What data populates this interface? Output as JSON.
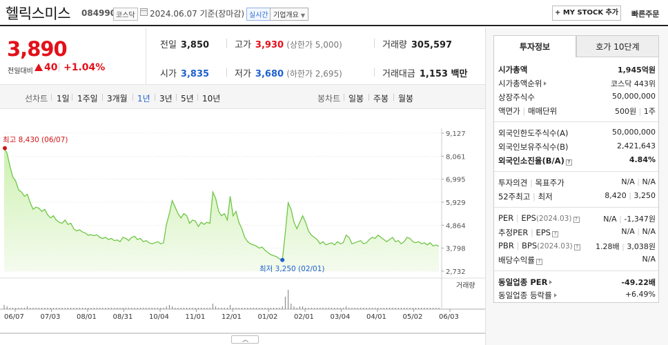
{
  "header": {
    "stock_name": "헬릭스미스",
    "stock_code": "084990",
    "market": "코스닥",
    "date": "2024.06.07 기준(장마감)",
    "realtime": "실시간",
    "company_info": "기업개요",
    "mystock": "+ MY STOCK 추가",
    "quick_order": "빠른주문"
  },
  "price": {
    "current": "3,890",
    "change_label": "전일대비",
    "change_value": "40",
    "change_pct": "+1.04%"
  },
  "stats": {
    "prev_label": "전일",
    "prev": "3,850",
    "high_label": "고가",
    "high": "3,930",
    "upper_limit": "(상한가 5,000)",
    "volume_label": "거래량",
    "volume": "305,597",
    "open_label": "시가",
    "open": "3,835",
    "low_label": "저가",
    "low": "3,680",
    "lower_limit": "(하한가 2,695)",
    "amount_label": "거래대금",
    "amount": "1,153 백만"
  },
  "tabs": {
    "line_title": "선차트",
    "line_tabs": [
      "1일",
      "1주일",
      "3개월",
      "1년",
      "3년",
      "5년",
      "10년"
    ],
    "active": "1년",
    "candle_title": "봉차트",
    "candle_tabs": [
      "일봉",
      "주봉",
      "월봉"
    ]
  },
  "chart_data": {
    "type": "area",
    "y_ticks": [
      "9,127",
      "8,061",
      "6,995",
      "5,929",
      "4,864",
      "3,798",
      "2,732"
    ],
    "ylim": [
      2732,
      9127
    ],
    "x_labels": [
      "06/07",
      "07/03",
      "08/01",
      "08/31",
      "10/04",
      "11/01",
      "12/01",
      "01/02",
      "02/01",
      "03/04",
      "04/01",
      "05/02",
      "06/03"
    ],
    "max_label": "최고 8,430 (06/07)",
    "min_label": "최저 3,250 (02/01)",
    "volume_label": "거래량",
    "price_series": [
      8430,
      8200,
      7600,
      7100,
      6900,
      6500,
      6400,
      6200,
      6300,
      5900,
      5600,
      5700,
      5650,
      5500,
      5600,
      5350,
      5200,
      5300,
      5100,
      5000,
      4950,
      5100,
      4900,
      4950,
      4700,
      4600,
      4650,
      4550,
      4500,
      4400,
      4420,
      4380,
      4420,
      4300,
      4250,
      4300,
      4200,
      4250,
      4150,
      4180,
      4100,
      4300,
      4250,
      4150,
      4300,
      4350,
      4200,
      4250,
      4100,
      4150,
      4050,
      4000,
      4050,
      4100,
      4000,
      4050,
      4900,
      5400,
      6000,
      5700,
      5400,
      5200,
      5400,
      5300,
      4950,
      5100,
      5050,
      4800,
      5000,
      4900,
      5000,
      4950,
      6400,
      6100,
      5500,
      5300,
      5400,
      5100,
      6200,
      5300,
      5500,
      5000,
      4700,
      4300,
      4100,
      4000,
      3950,
      3900,
      3800,
      3850,
      3700,
      3600,
      3500,
      3450,
      3400,
      3300,
      3250,
      4500,
      5900,
      5600,
      5000,
      4700,
      5000,
      5300,
      5000,
      4600,
      4400,
      4300,
      4200,
      4000,
      4100,
      3950,
      4000,
      4050,
      3950,
      4100,
      4000,
      4050,
      4400,
      4300,
      4000,
      4050,
      4100,
      4150,
      4000,
      4050,
      4200,
      4300,
      4250,
      4400,
      4300,
      4200,
      4100,
      4200,
      4300,
      4100,
      4150,
      4000,
      4100,
      4300,
      4250,
      4100,
      4050,
      4100,
      4000,
      4050,
      3950,
      4050,
      3900,
      3950,
      3890
    ],
    "volume_series": [
      3,
      2,
      1,
      1,
      1,
      1,
      1,
      1,
      2,
      1,
      1,
      1,
      1,
      1,
      1,
      1,
      1,
      1,
      1,
      1,
      1,
      1,
      1,
      1,
      1,
      1,
      1,
      1,
      1,
      1,
      1,
      1,
      1,
      1,
      1,
      1,
      1,
      1,
      1,
      1,
      1,
      1,
      1,
      1,
      1,
      1,
      1,
      1,
      1,
      1,
      1,
      1,
      1,
      1,
      1,
      1,
      2,
      3,
      2,
      1,
      1,
      1,
      1,
      1,
      1,
      1,
      1,
      1,
      1,
      1,
      1,
      1,
      4,
      2,
      1,
      1,
      1,
      1,
      3,
      1,
      1,
      1,
      1,
      1,
      1,
      1,
      1,
      1,
      1,
      1,
      1,
      1,
      1,
      1,
      1,
      1,
      2,
      9,
      14,
      4,
      2,
      1,
      2,
      2,
      1,
      1,
      1,
      1,
      1,
      1,
      1,
      1,
      1,
      1,
      1,
      1,
      1,
      1,
      2,
      1,
      1,
      1,
      1,
      1,
      1,
      1,
      1,
      1,
      1,
      1,
      1,
      1,
      1,
      1,
      1,
      1,
      1,
      1,
      1,
      1,
      1,
      1,
      1,
      1,
      1,
      1,
      1,
      1,
      1,
      1,
      1
    ]
  },
  "right_panel": {
    "tab1": "투자정보",
    "tab2": "호가 10단계",
    "market_cap_label": "시가총액",
    "market_cap": "1,945억원",
    "cap_rank_label": "시가총액순위",
    "cap_rank": "코스닥 443위",
    "shares_label": "상장주식수",
    "shares": "50,000,000",
    "face_label": "액면가",
    "unit_label": "매매단위",
    "face": "500원",
    "unit": "1주",
    "foreign_limit_label": "외국인한도주식수(A)",
    "foreign_limit": "50,000,000",
    "foreign_hold_label": "외국인보유주식수(B)",
    "foreign_hold": "2,421,643",
    "foreign_ratio_label": "외국인소진율(B/A)",
    "foreign_ratio": "4.84%",
    "opinion_label": "투자의견",
    "target_label": "목표주가",
    "opinion": "N/A",
    "target": "N/A",
    "w52_label": "52주최고",
    "w52_low_label": "최저",
    "w52_high": "8,420",
    "w52_low": "3,250",
    "per_label": "PER",
    "eps_label": "EPS",
    "eps_period": "(2024.03)",
    "per": "N/A",
    "eps": "-1,347원",
    "est_per_label": "추정PER",
    "est_eps_label": "EPS",
    "est_per": "N/A",
    "est_eps": "N/A",
    "pbr_label": "PBR",
    "bps_label": "BPS",
    "bps_period": "(2024.03)",
    "pbr": "1.28배",
    "bps": "3,038원",
    "div_label": "배당수익률",
    "div": "N/A",
    "ind_per_label": "동일업종 PER",
    "ind_per": "-49.22배",
    "ind_rate_label": "동일업종 등락률",
    "ind_rate": "+6.49%"
  }
}
